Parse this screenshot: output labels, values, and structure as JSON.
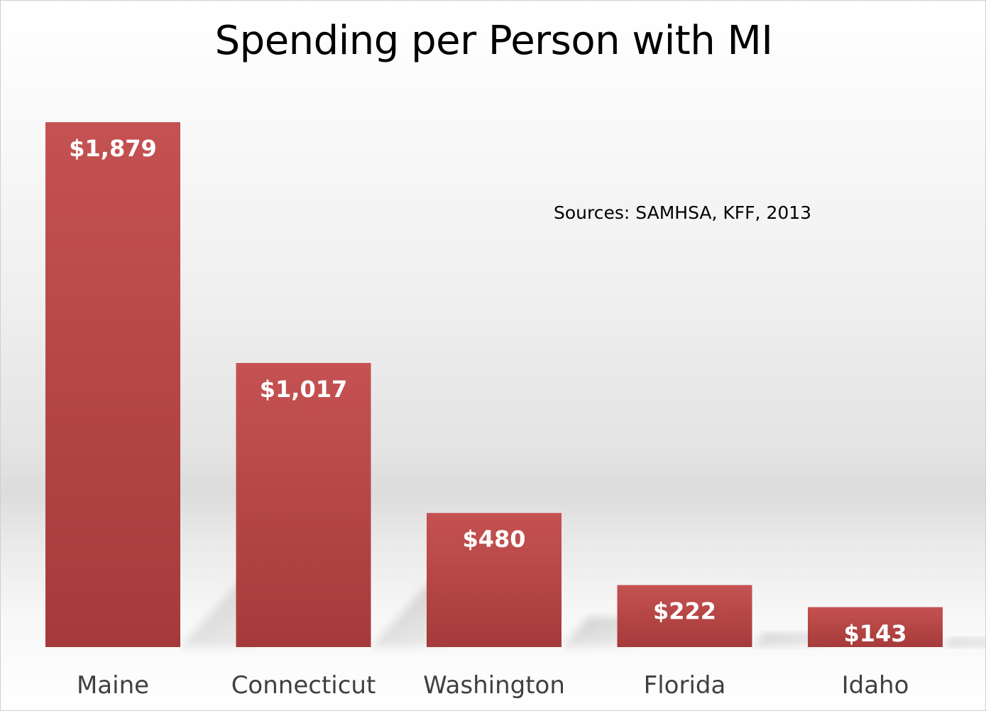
{
  "chart_data": {
    "type": "bar",
    "title": "Spending per Person with MI",
    "annotation": "Sources:  SAMHSA, KFF, 2013",
    "categories": [
      "Maine",
      "Connecticut",
      "Washington",
      "Florida",
      "Idaho"
    ],
    "values": [
      1879,
      1017,
      480,
      222,
      143
    ],
    "value_labels": [
      "$1,879",
      "$1,017",
      "$480",
      "$222",
      "$143"
    ],
    "xlabel": "",
    "ylabel": "",
    "ylim": [
      0,
      1879
    ],
    "grid": false,
    "legend": "none",
    "bar_color": "#b84444"
  }
}
